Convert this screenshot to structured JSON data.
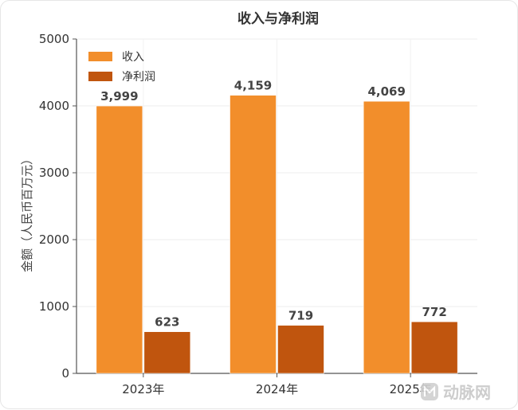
{
  "chart_data": {
    "type": "bar",
    "title": "收入与净利润",
    "ylabel": "金额（人民币百万元）",
    "xlabel": "",
    "categories": [
      "2023年",
      "2024年",
      "2025年"
    ],
    "series": [
      {
        "name": "收入",
        "values": [
          3999,
          4159,
          4069
        ],
        "labels": [
          "3,999",
          "4,159",
          "4,069"
        ],
        "color": "#F28E2B"
      },
      {
        "name": "净利润",
        "values": [
          623,
          719,
          772
        ],
        "labels": [
          "623",
          "719",
          "772"
        ],
        "color": "#C0550E"
      }
    ],
    "ylim": [
      0,
      5000
    ],
    "yticks": [
      "0",
      "1000",
      "2000",
      "3000",
      "4000",
      "5000"
    ],
    "ytick_values": [
      0,
      1000,
      2000,
      3000,
      4000,
      5000
    ],
    "grid": true,
    "legend_position": "top-left"
  },
  "watermark": {
    "text": "动脉网",
    "icon": "arterial-network-logo-icon"
  }
}
